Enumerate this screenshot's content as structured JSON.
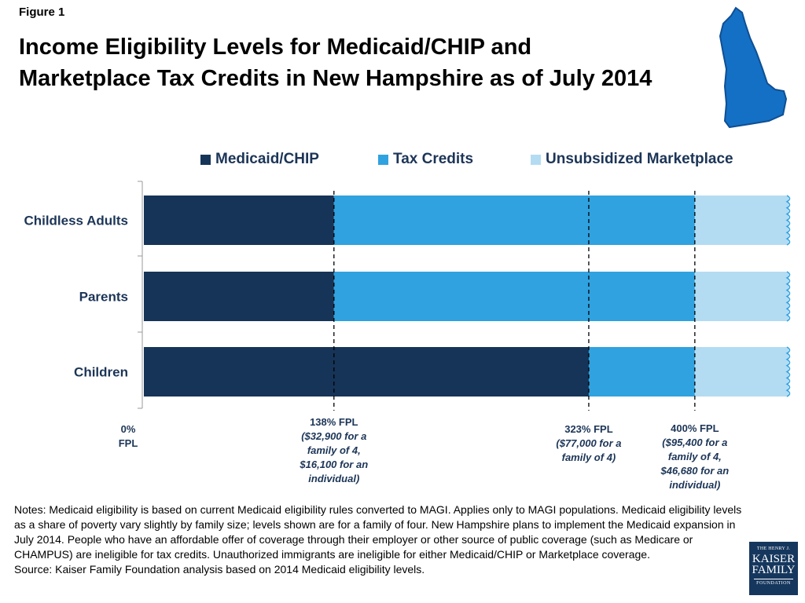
{
  "figure_label": "Figure 1",
  "title_lines": [
    "Income Eligibility Levels for Medicaid/CHIP and",
    "Marketplace Tax Credits in New Hampshire as of July 2014"
  ],
  "state_shape_icon": "new-hampshire-map-icon",
  "colors": {
    "medicaid": "#163457",
    "tax_credits": "#30a2e0",
    "unsubsidized": "#b3dcf3",
    "label_text": "#1c3557",
    "state_fill": "#1470c4"
  },
  "legend": [
    {
      "label": "Medicaid/CHIP",
      "color": "#163457"
    },
    {
      "label": "Tax Credits",
      "color": "#30a2e0"
    },
    {
      "label": "Unsubsidized Marketplace",
      "color": "#b3dcf3"
    }
  ],
  "chart_data": {
    "type": "bar",
    "orientation": "horizontal",
    "stacked": true,
    "categories": [
      "Childless Adults",
      "Parents",
      "Children"
    ],
    "x_unit": "% FPL",
    "series": [
      {
        "name": "Medicaid/CHIP",
        "segments": [
          [
            0,
            138
          ],
          [
            0,
            138
          ],
          [
            0,
            323
          ]
        ]
      },
      {
        "name": "Tax Credits",
        "segments": [
          [
            138,
            400
          ],
          [
            138,
            400
          ],
          [
            323,
            400
          ]
        ]
      },
      {
        "name": "Unsubsidized Marketplace",
        "segments": [
          [
            400,
            468
          ],
          [
            400,
            468
          ],
          [
            400,
            468
          ]
        ],
        "open_ended": true
      }
    ],
    "xlim": [
      0,
      468
    ],
    "threshold_lines": [
      138,
      323,
      400
    ],
    "legend_position": "top",
    "grid": false
  },
  "fpl_labels": [
    {
      "value": 0,
      "main": "0%",
      "sub": [
        "FPL"
      ],
      "sub_italic": false
    },
    {
      "value": 138,
      "main": "138% FPL",
      "sub": [
        "($32,900 for a",
        "family of 4,",
        "$16,100 for an",
        "individual)"
      ],
      "sub_italic": true
    },
    {
      "value": 323,
      "main": "323% FPL",
      "sub": [
        "($77,000 for a",
        "family of 4)"
      ],
      "sub_italic": true
    },
    {
      "value": 400,
      "main": "400% FPL",
      "sub": [
        "($95,400 for a",
        "family of 4,",
        "$46,680 for an",
        "individual)"
      ],
      "sub_italic": true
    }
  ],
  "notes": [
    "Notes: Medicaid eligibility is based on current Medicaid eligibility rules converted to MAGI. Applies only to MAGI populations. Medicaid eligibility levels as a share of poverty vary slightly by family size; levels shown are for a family of four. New Hampshire plans to implement the Medicaid expansion in July 2014. People who have an affordable offer of coverage through their employer or other source of public coverage (such as Medicare or CHAMPUS) are ineligible for tax credits. Unauthorized immigrants are ineligible for either Medicaid/CHIP or Marketplace coverage.",
    "Source: Kaiser Family Foundation analysis based on 2014 Medicaid eligibility levels."
  ],
  "logo": {
    "line1": "THE HENRY J.",
    "line2": "KAISER",
    "line3": "FAMILY",
    "line4": "FOUNDATION"
  }
}
